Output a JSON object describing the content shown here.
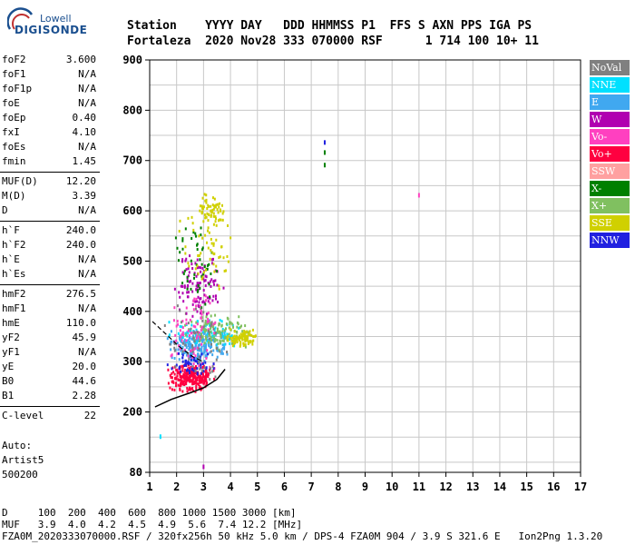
{
  "logo": {
    "top": "Lowell",
    "main": "DIGISONDE"
  },
  "header": {
    "line1": "Station    YYYY DAY   DDD HHMMSS P1  FFS S AXN PPS IGA PS",
    "line2": "Fortaleza  2020 Nov28 333 070000 RSF      1 714 100 10+ 11"
  },
  "params": {
    "group1": [
      {
        "name": "foF2",
        "value": "3.600"
      },
      {
        "name": "foF1",
        "value": "N/A"
      },
      {
        "name": "foF1p",
        "value": "N/A"
      },
      {
        "name": "foE",
        "value": "N/A"
      },
      {
        "name": "foEp",
        "value": "0.40"
      },
      {
        "name": "fxI",
        "value": "4.10"
      },
      {
        "name": "foEs",
        "value": "N/A"
      },
      {
        "name": "fmin",
        "value": "1.45"
      }
    ],
    "group2": [
      {
        "name": "MUF(D)",
        "value": "12.20"
      },
      {
        "name": "M(D)",
        "value": "3.39"
      },
      {
        "name": "D",
        "value": "N/A"
      }
    ],
    "group3": [
      {
        "name": "h`F",
        "value": "240.0"
      },
      {
        "name": "h`F2",
        "value": "240.0"
      },
      {
        "name": "h`E",
        "value": "N/A"
      },
      {
        "name": "h`Es",
        "value": "N/A"
      }
    ],
    "group4": [
      {
        "name": "hmF2",
        "value": "276.5"
      },
      {
        "name": "hmF1",
        "value": "N/A"
      },
      {
        "name": "hmE",
        "value": "110.0"
      },
      {
        "name": "yF2",
        "value": "45.9"
      },
      {
        "name": "yF1",
        "value": "N/A"
      },
      {
        "name": "yE",
        "value": "20.0"
      },
      {
        "name": "B0",
        "value": "44.6"
      },
      {
        "name": "B1",
        "value": "2.28"
      }
    ],
    "group5": [
      {
        "name": "C-level",
        "value": "22"
      }
    ]
  },
  "auto": {
    "line1": "Auto:",
    "line2": "Artist5",
    "line3": "500200"
  },
  "legend": [
    {
      "label": "NoVal",
      "color": "#808080"
    },
    {
      "label": "NNE",
      "color": "#00e0ff"
    },
    {
      "label": "E",
      "color": "#40a8f0"
    },
    {
      "label": "W",
      "color": "#b000b0"
    },
    {
      "label": "Vo-",
      "color": "#ff40c0"
    },
    {
      "label": "Vo+",
      "color": "#ff0040"
    },
    {
      "label": "SSW",
      "color": "#ffa0a0"
    },
    {
      "label": "X-",
      "color": "#008000"
    },
    {
      "label": "X+",
      "color": "#80c060"
    },
    {
      "label": "SSE",
      "color": "#d0d000"
    },
    {
      "label": "NNW",
      "color": "#2020e0"
    }
  ],
  "footer": {
    "line1": "D     100  200  400  600  800 1000 1500 3000 [km]",
    "line2": "MUF   3.9  4.0  4.2  4.5  4.9  5.6  7.4 12.2 [MHz]",
    "line3": "FZA0M_2020333070000.RSF / 320fx256h 50 kHz 5.0 km / DPS-4 FZA0M 904 / 3.9 S 321.6 E   Ion2Png 1.3.20"
  },
  "chart_data": {
    "type": "scatter",
    "xlim": [
      1,
      17
    ],
    "ylim": [
      80,
      900
    ],
    "xticks": [
      "1",
      "2",
      "3",
      "4",
      "5",
      "6",
      "7",
      "8",
      "9",
      "10",
      "11",
      "12",
      "13",
      "14",
      "15",
      "16",
      "17"
    ],
    "yticks": [
      "80",
      "200",
      "300",
      "400",
      "500",
      "600",
      "700",
      "800",
      "900"
    ],
    "grid": true,
    "clusters": [
      {
        "color": "#ff0040",
        "x": [
          1.6,
          3.4
        ],
        "y": [
          240,
          300
        ],
        "n": 260
      },
      {
        "color": "#40a8f0",
        "x": [
          1.5,
          4.0
        ],
        "y": [
          300,
          370
        ],
        "n": 220
      },
      {
        "color": "#00e0ff",
        "x": [
          1.6,
          4.4
        ],
        "y": [
          330,
          390
        ],
        "n": 90
      },
      {
        "color": "#80c060",
        "x": [
          2.0,
          4.8
        ],
        "y": [
          320,
          400
        ],
        "n": 120
      },
      {
        "color": "#d0d000",
        "x": [
          3.8,
          5.0
        ],
        "y": [
          330,
          370
        ],
        "n": 90
      },
      {
        "color": "#d0d000",
        "x": [
          2.7,
          3.8
        ],
        "y": [
          570,
          640
        ],
        "n": 60
      },
      {
        "color": "#b000b0",
        "x": [
          1.8,
          3.8
        ],
        "y": [
          380,
          520
        ],
        "n": 110
      },
      {
        "color": "#ff40c0",
        "x": [
          1.7,
          3.6
        ],
        "y": [
          270,
          450
        ],
        "n": 90
      },
      {
        "color": "#2020e0",
        "x": [
          1.6,
          3.4
        ],
        "y": [
          270,
          330
        ],
        "n": 50
      },
      {
        "color": "#008000",
        "x": [
          1.8,
          3.6
        ],
        "y": [
          400,
          600
        ],
        "n": 50
      },
      {
        "color": "#808080",
        "x": [
          1.5,
          4.0
        ],
        "y": [
          250,
          420
        ],
        "n": 60
      },
      {
        "color": "#d0d000",
        "x": [
          2.0,
          4.2
        ],
        "y": [
          420,
          640
        ],
        "n": 60
      }
    ],
    "isolated_points": [
      {
        "x": 7.5,
        "y": 735,
        "color": "#2020e0"
      },
      {
        "x": 7.5,
        "y": 715,
        "color": "#008000"
      },
      {
        "x": 7.5,
        "y": 690,
        "color": "#008000"
      },
      {
        "x": 11.0,
        "y": 630,
        "color": "#ff40c0"
      },
      {
        "x": 1.4,
        "y": 150,
        "color": "#00e0ff"
      },
      {
        "x": 3.0,
        "y": 90,
        "color": "#b000b0"
      }
    ],
    "trace_lower": [
      [
        1.2,
        210
      ],
      [
        1.8,
        225
      ],
      [
        2.5,
        238
      ],
      [
        3.0,
        248
      ],
      [
        3.5,
        265
      ],
      [
        3.8,
        285
      ]
    ],
    "trace_dashed": [
      [
        1.1,
        380
      ],
      [
        1.6,
        355
      ],
      [
        2.1,
        330
      ],
      [
        2.6,
        310
      ],
      [
        3.0,
        300
      ]
    ]
  }
}
